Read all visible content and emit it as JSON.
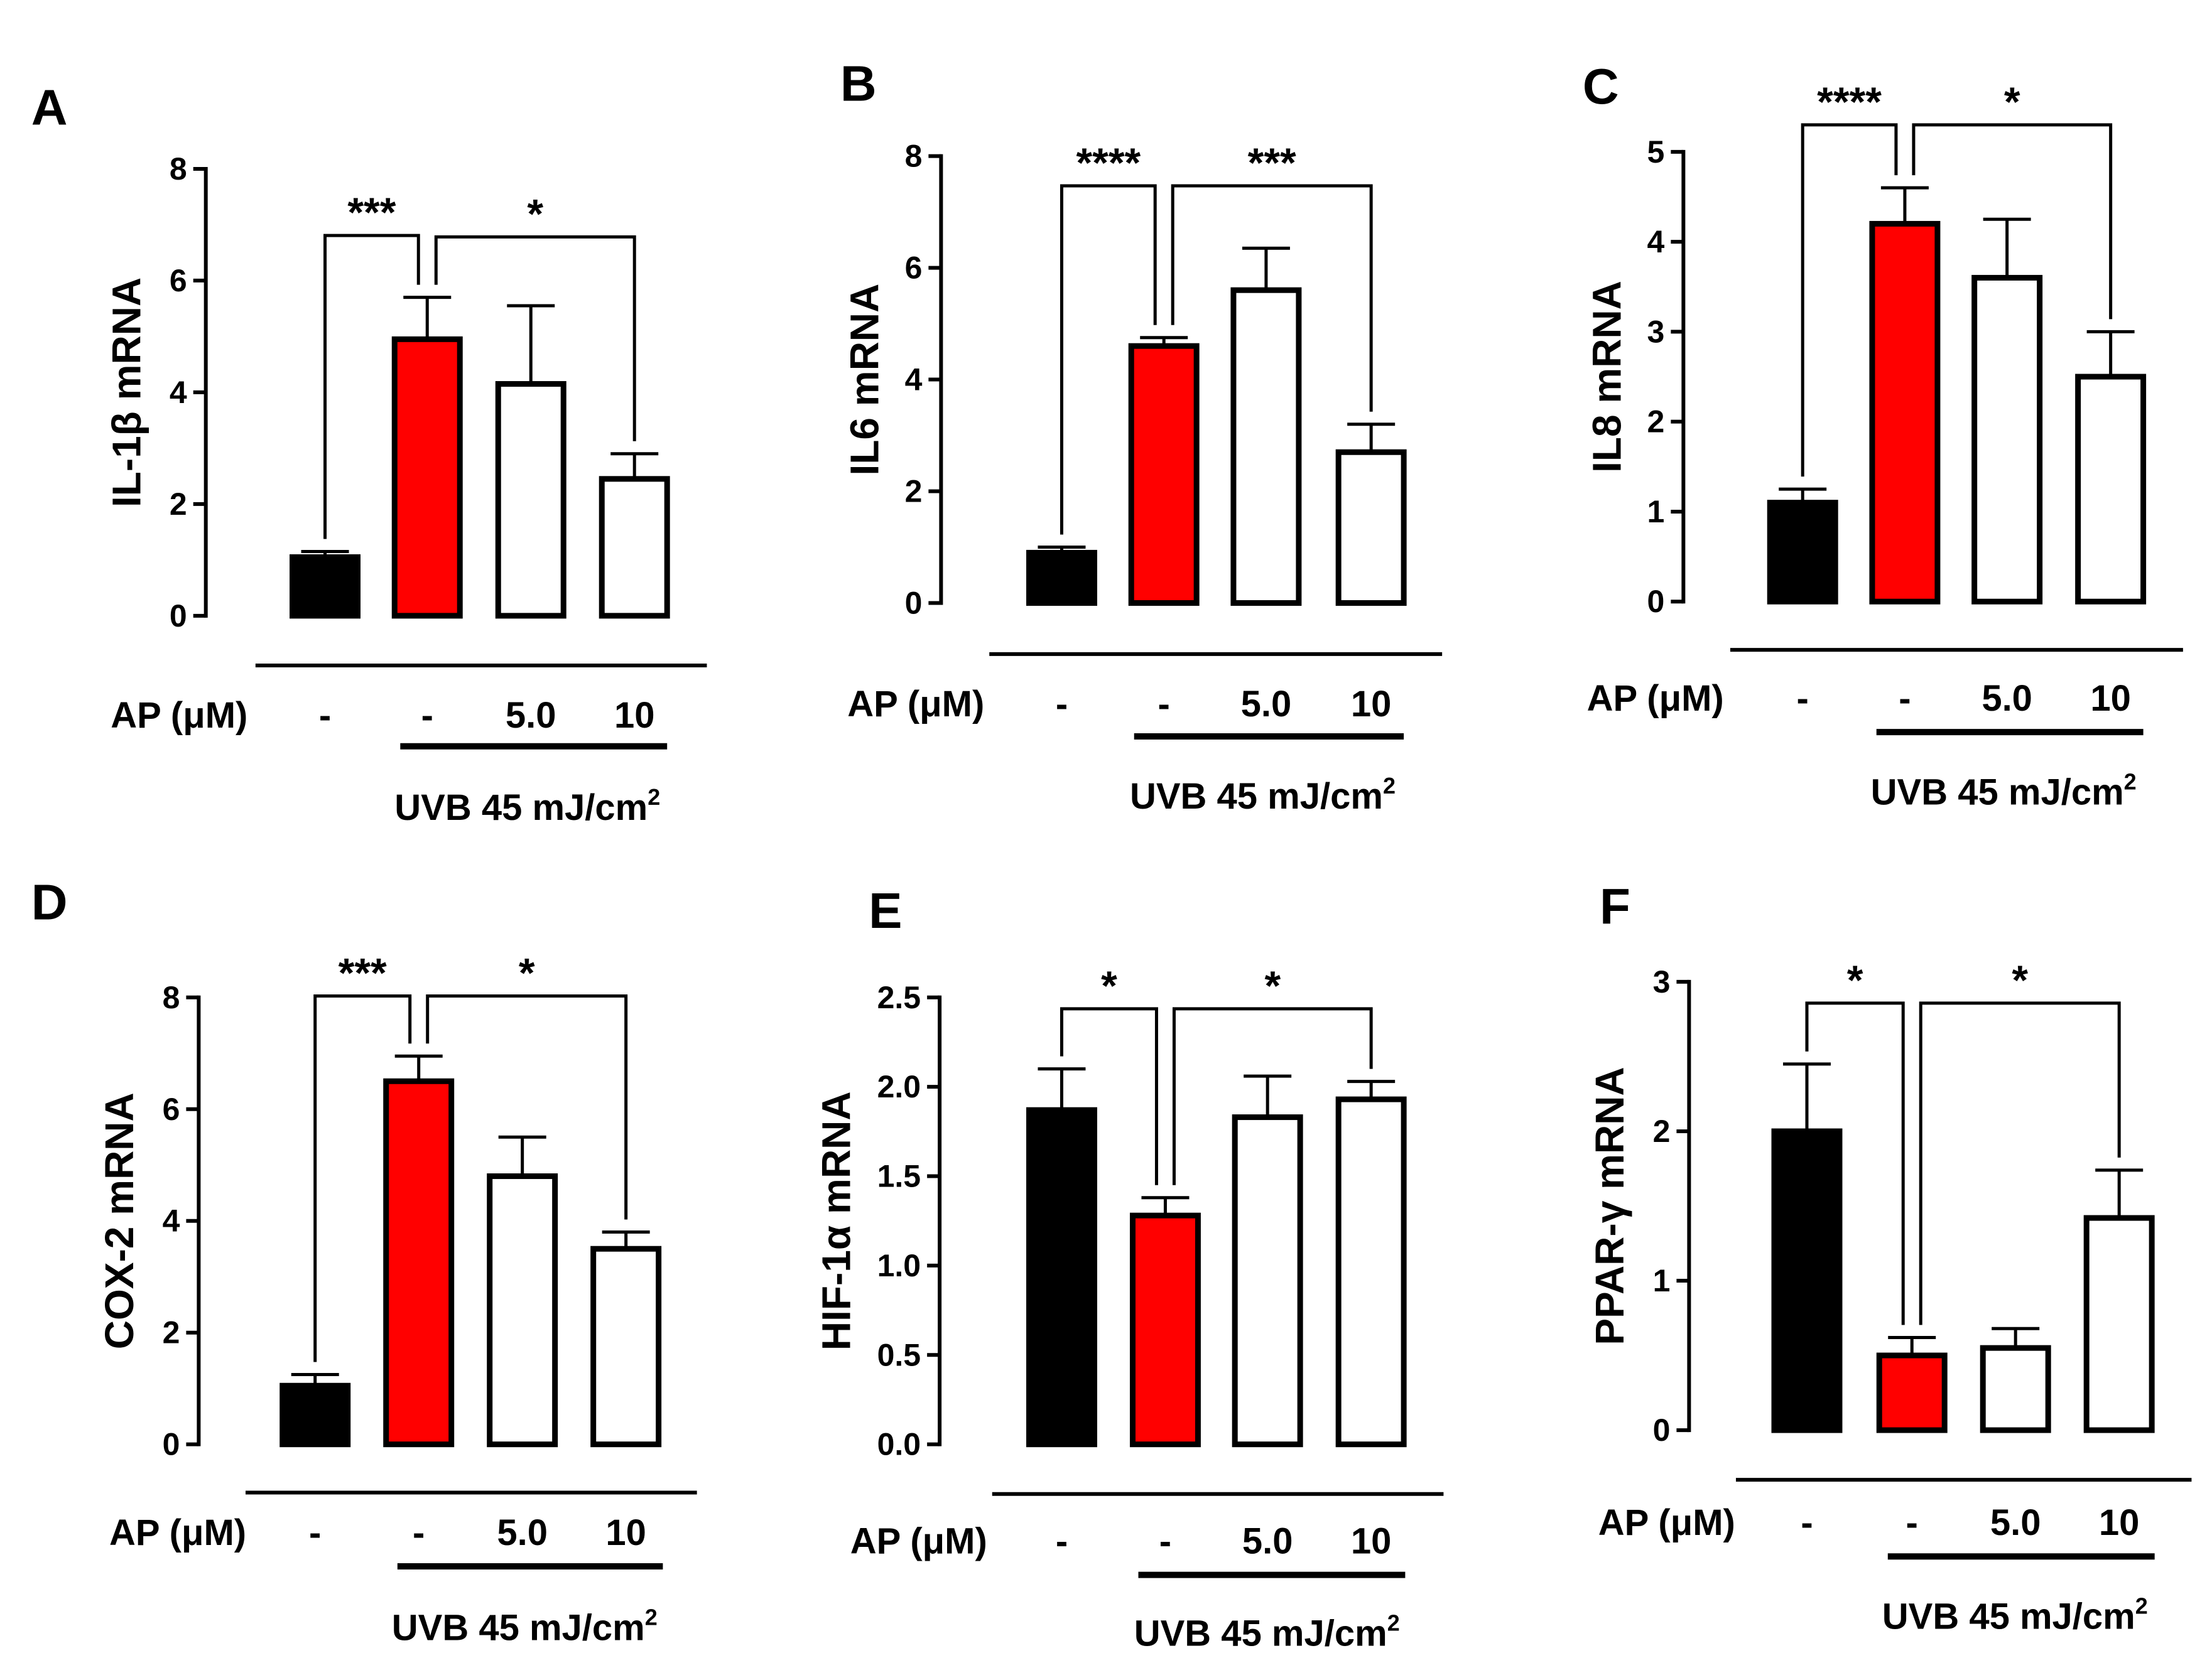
{
  "figure": {
    "condition_label": "AP (μM)",
    "group_labels": [
      "-",
      "-",
      "5.0",
      "10"
    ],
    "uvb_label": "UVB 45 mJ/cm",
    "uvb_superscript": "2"
  },
  "colors": {
    "control": "#000000",
    "uvb": "#ff0000",
    "treated": "#ffffff",
    "stroke": "#000000"
  },
  "chart_data": [
    {
      "type": "bar",
      "panel": "A",
      "title": "",
      "ylabel": "IL-1β mRNA",
      "xlabel": "",
      "categories": [
        "-",
        "-",
        "5.0",
        "10"
      ],
      "values": [
        1.05,
        4.95,
        4.15,
        2.45
      ],
      "errors": [
        0.1,
        0.75,
        1.4,
        0.45
      ],
      "ylim": [
        0,
        8
      ],
      "yticks": [
        0,
        2,
        4,
        6,
        8
      ],
      "ytick_labels": [
        "0",
        "2",
        "4",
        "6",
        "8"
      ],
      "significance": [
        {
          "from": 0,
          "to": 1,
          "label": "***"
        },
        {
          "from": 1,
          "to": 3,
          "label": "*"
        }
      ]
    },
    {
      "type": "bar",
      "panel": "B",
      "title": "",
      "ylabel": "IL6 mRNA",
      "xlabel": "",
      "categories": [
        "-",
        "-",
        "5.0",
        "10"
      ],
      "values": [
        0.9,
        4.6,
        5.6,
        2.7
      ],
      "errors": [
        0.1,
        0.15,
        0.75,
        0.5
      ],
      "ylim": [
        0,
        8
      ],
      "yticks": [
        0,
        2,
        4,
        6,
        8
      ],
      "ytick_labels": [
        "0",
        "2",
        "4",
        "6",
        "8"
      ],
      "significance": [
        {
          "from": 0,
          "to": 1,
          "label": "****"
        },
        {
          "from": 1,
          "to": 3,
          "label": "***"
        }
      ]
    },
    {
      "type": "bar",
      "panel": "C",
      "title": "",
      "ylabel": "IL8 mRNA",
      "xlabel": "",
      "categories": [
        "-",
        "-",
        "5.0",
        "10"
      ],
      "values": [
        1.1,
        4.2,
        3.6,
        2.5
      ],
      "errors": [
        0.15,
        0.4,
        0.65,
        0.5
      ],
      "ylim": [
        0,
        5
      ],
      "yticks": [
        0,
        1,
        2,
        3,
        4,
        5
      ],
      "ytick_labels": [
        "0",
        "1",
        "2",
        "3",
        "4",
        "5"
      ],
      "significance": [
        {
          "from": 0,
          "to": 1,
          "label": "****"
        },
        {
          "from": 1,
          "to": 3,
          "label": "*"
        }
      ]
    },
    {
      "type": "bar",
      "panel": "D",
      "title": "",
      "ylabel": "COX-2 mRNA",
      "xlabel": "",
      "categories": [
        "-",
        "-",
        "5.0",
        "10"
      ],
      "values": [
        1.05,
        6.5,
        4.8,
        3.5
      ],
      "errors": [
        0.2,
        0.45,
        0.7,
        0.3
      ],
      "ylim": [
        0,
        8
      ],
      "yticks": [
        0,
        2,
        4,
        6,
        8
      ],
      "ytick_labels": [
        "0",
        "2",
        "4",
        "6",
        "8"
      ],
      "significance": [
        {
          "from": 0,
          "to": 1,
          "label": "***"
        },
        {
          "from": 1,
          "to": 3,
          "label": "*"
        }
      ]
    },
    {
      "type": "bar",
      "panel": "E",
      "title": "",
      "ylabel": "HIF-1α mRNA",
      "xlabel": "",
      "categories": [
        "-",
        "-",
        "5.0",
        "10"
      ],
      "values": [
        1.87,
        1.28,
        1.83,
        1.93
      ],
      "errors": [
        0.23,
        0.1,
        0.23,
        0.1
      ],
      "ylim": [
        0,
        2.5
      ],
      "yticks": [
        0,
        0.5,
        1.0,
        1.5,
        2.0,
        2.5
      ],
      "ytick_labels": [
        "0.0",
        "0.5",
        "1.0",
        "1.5",
        "2.0",
        "2.5"
      ],
      "significance": [
        {
          "from": 0,
          "to": 1,
          "label": "*"
        },
        {
          "from": 1,
          "to": 3,
          "label": "*"
        }
      ]
    },
    {
      "type": "bar",
      "panel": "F",
      "title": "",
      "ylabel": "PPAR-γ mRNA",
      "xlabel": "",
      "categories": [
        "-",
        "-",
        "5.0",
        "10"
      ],
      "values": [
        2.0,
        0.5,
        0.55,
        1.42
      ],
      "errors": [
        0.45,
        0.12,
        0.13,
        0.32
      ],
      "ylim": [
        0,
        3
      ],
      "yticks": [
        0,
        1,
        2,
        3
      ],
      "ytick_labels": [
        "0",
        "1",
        "2",
        "3"
      ],
      "significance": [
        {
          "from": 0,
          "to": 1,
          "label": "*"
        },
        {
          "from": 1,
          "to": 3,
          "label": "*"
        }
      ]
    }
  ]
}
